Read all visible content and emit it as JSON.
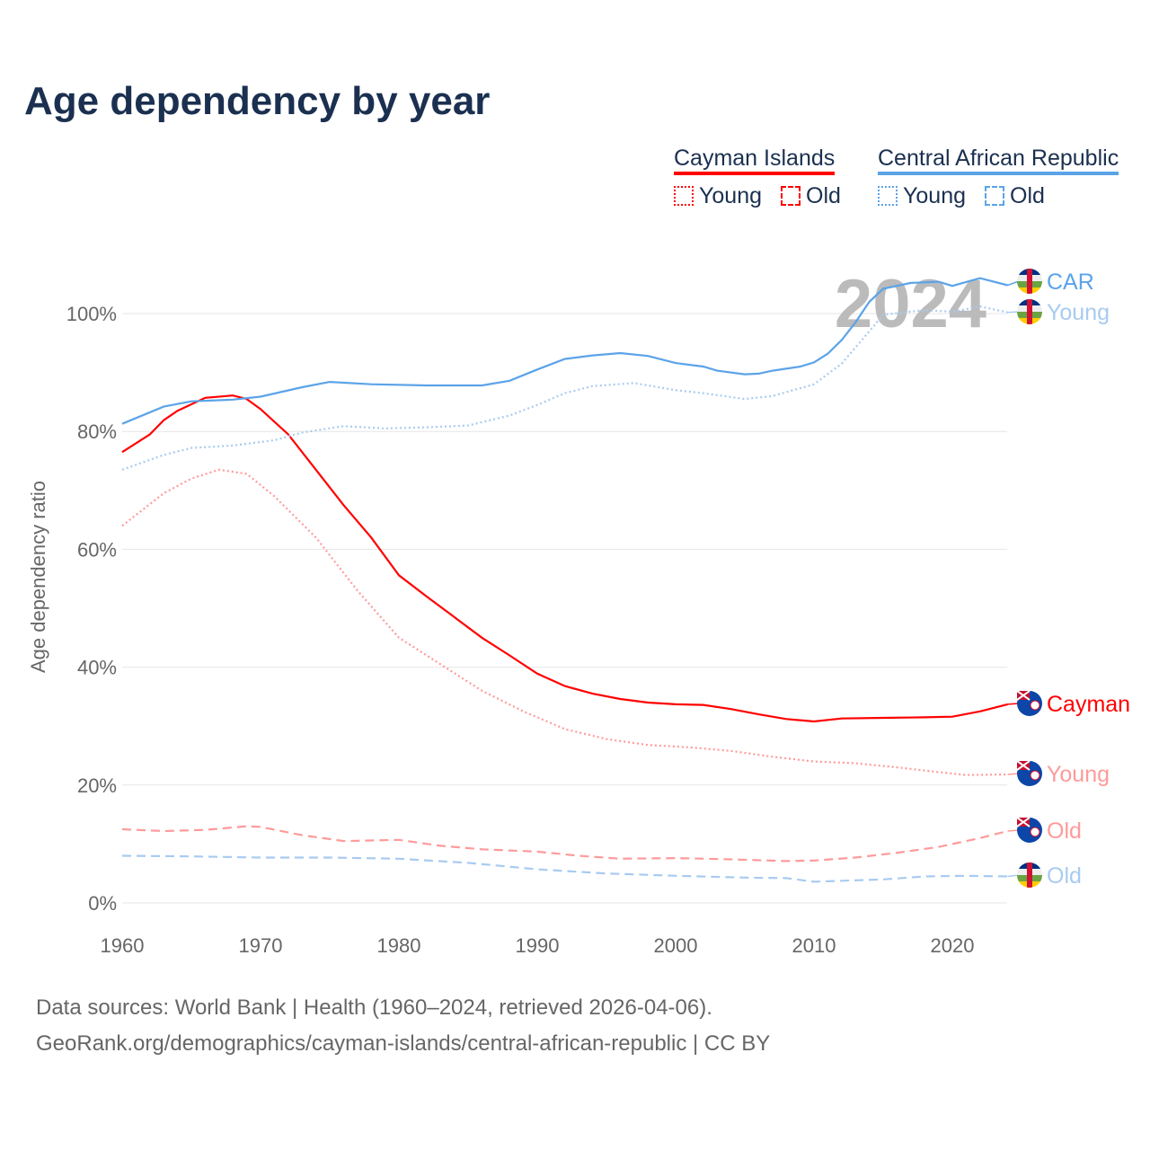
{
  "chart_data": {
    "type": "line",
    "title": "Age dependency by year",
    "xlabel": "",
    "ylabel": "Age dependency ratio",
    "xlim": [
      1960,
      2024
    ],
    "ylim": [
      0,
      110
    ],
    "x_ticks": [
      "1960",
      "1970",
      "1980",
      "1990",
      "2000",
      "2010",
      "2020"
    ],
    "y_ticks": [
      "0%",
      "20%",
      "40%",
      "60%",
      "80%",
      "100%"
    ],
    "grid": true,
    "year_watermark": "2024",
    "legend": {
      "placement": "top-right",
      "groups": [
        {
          "name": "Cayman Islands",
          "color": "#ff0000",
          "young": "Young",
          "old": "Old"
        },
        {
          "name": "Central African Republic",
          "color": "#5ba3e8",
          "young": "Young",
          "old": "Old"
        }
      ]
    },
    "series": [
      {
        "name": "Cayman total",
        "label": "Cayman",
        "color": "#ff0000",
        "style": "solid",
        "points": [
          [
            1960,
            76.5
          ],
          [
            1962,
            79.5
          ],
          [
            1963,
            81.9
          ],
          [
            1964,
            83.5
          ],
          [
            1966,
            85.7
          ],
          [
            1968,
            86.1
          ],
          [
            1969,
            85.5
          ],
          [
            1970,
            83.8
          ],
          [
            1972,
            79.5
          ],
          [
            1974,
            73.5
          ],
          [
            1976,
            67.5
          ],
          [
            1978,
            62
          ],
          [
            1980,
            55.6
          ],
          [
            1982,
            52
          ],
          [
            1984,
            48.5
          ],
          [
            1986,
            45
          ],
          [
            1988,
            42
          ],
          [
            1990,
            38.9
          ],
          [
            1992,
            36.8
          ],
          [
            1994,
            35.5
          ],
          [
            1996,
            34.6
          ],
          [
            1998,
            34
          ],
          [
            2000,
            33.7
          ],
          [
            2002,
            33.6
          ],
          [
            2004,
            32.9
          ],
          [
            2006,
            32
          ],
          [
            2008,
            31.2
          ],
          [
            2010,
            30.8
          ],
          [
            2012,
            31.3
          ],
          [
            2015,
            31.4
          ],
          [
            2018,
            31.5
          ],
          [
            2020,
            31.6
          ],
          [
            2022,
            32.5
          ],
          [
            2024,
            33.7
          ]
        ]
      },
      {
        "name": "Cayman young",
        "label": "Young",
        "color": "#ff9a9a",
        "style": "dotted",
        "points": [
          [
            1960,
            64
          ],
          [
            1963,
            69.5
          ],
          [
            1965,
            72
          ],
          [
            1967,
            73.5
          ],
          [
            1969,
            72.8
          ],
          [
            1971,
            69
          ],
          [
            1974,
            62
          ],
          [
            1977,
            53
          ],
          [
            1980,
            45
          ],
          [
            1983,
            40.5
          ],
          [
            1986,
            36
          ],
          [
            1989,
            32.5
          ],
          [
            1992,
            29.5
          ],
          [
            1995,
            27.8
          ],
          [
            1998,
            26.8
          ],
          [
            2001,
            26.4
          ],
          [
            2004,
            25.8
          ],
          [
            2007,
            24.8
          ],
          [
            2010,
            24
          ],
          [
            2013,
            23.7
          ],
          [
            2016,
            23
          ],
          [
            2019,
            22.2
          ],
          [
            2021,
            21.7
          ],
          [
            2024,
            21.8
          ]
        ]
      },
      {
        "name": "Cayman old",
        "label": "Old",
        "color": "#ff9a9a",
        "style": "dashed",
        "points": [
          [
            1960,
            12.5
          ],
          [
            1963,
            12.2
          ],
          [
            1966,
            12.4
          ],
          [
            1969,
            13
          ],
          [
            1970,
            12.9
          ],
          [
            1973,
            11.5
          ],
          [
            1976,
            10.5
          ],
          [
            1980,
            10.7
          ],
          [
            1983,
            9.7
          ],
          [
            1986,
            9.1
          ],
          [
            1990,
            8.7
          ],
          [
            1993,
            8
          ],
          [
            1996,
            7.5
          ],
          [
            2000,
            7.6
          ],
          [
            2004,
            7.4
          ],
          [
            2008,
            7.1
          ],
          [
            2010,
            7.2
          ],
          [
            2013,
            7.7
          ],
          [
            2016,
            8.5
          ],
          [
            2019,
            9.5
          ],
          [
            2022,
            11
          ],
          [
            2024,
            12.2
          ]
        ]
      },
      {
        "name": "CAR total",
        "label": "CAR",
        "color": "#5ba3e8",
        "style": "solid",
        "points": [
          [
            1960,
            81.3
          ],
          [
            1963,
            84.2
          ],
          [
            1965,
            85.1
          ],
          [
            1968,
            85.4
          ],
          [
            1970,
            85.9
          ],
          [
            1973,
            87.5
          ],
          [
            1975,
            88.4
          ],
          [
            1978,
            88
          ],
          [
            1982,
            87.8
          ],
          [
            1986,
            87.8
          ],
          [
            1988,
            88.6
          ],
          [
            1990,
            90.5
          ],
          [
            1992,
            92.3
          ],
          [
            1994,
            92.9
          ],
          [
            1996,
            93.3
          ],
          [
            1998,
            92.8
          ],
          [
            2000,
            91.6
          ],
          [
            2002,
            91
          ],
          [
            2003,
            90.3
          ],
          [
            2005,
            89.7
          ],
          [
            2006,
            89.8
          ],
          [
            2007,
            90.3
          ],
          [
            2009,
            91
          ],
          [
            2010,
            91.7
          ],
          [
            2011,
            93.2
          ],
          [
            2012,
            95.5
          ],
          [
            2013,
            98.5
          ],
          [
            2014,
            102
          ],
          [
            2015,
            104.2
          ],
          [
            2017,
            105.2
          ],
          [
            2019,
            105.4
          ],
          [
            2020,
            104.7
          ],
          [
            2022,
            106
          ],
          [
            2024,
            104.8
          ]
        ]
      },
      {
        "name": "CAR young",
        "label": "Young",
        "color": "#a8cbf0",
        "style": "dotted",
        "points": [
          [
            1960,
            73.5
          ],
          [
            1963,
            76
          ],
          [
            1965,
            77.2
          ],
          [
            1968,
            77.6
          ],
          [
            1971,
            78.5
          ],
          [
            1973,
            79.8
          ],
          [
            1976,
            80.9
          ],
          [
            1979,
            80.5
          ],
          [
            1982,
            80.7
          ],
          [
            1985,
            81
          ],
          [
            1988,
            82.7
          ],
          [
            1990,
            84.5
          ],
          [
            1992,
            86.5
          ],
          [
            1994,
            87.7
          ],
          [
            1997,
            88.2
          ],
          [
            2000,
            87
          ],
          [
            2002,
            86.5
          ],
          [
            2005,
            85.5
          ],
          [
            2007,
            86
          ],
          [
            2010,
            88
          ],
          [
            2012,
            91.5
          ],
          [
            2014,
            97
          ],
          [
            2015,
            99.8
          ],
          [
            2018,
            100.6
          ],
          [
            2020,
            100.3
          ],
          [
            2022,
            101.2
          ],
          [
            2024,
            100.2
          ]
        ]
      },
      {
        "name": "CAR old",
        "label": "Old",
        "color": "#a8cbf0",
        "style": "dashed",
        "points": [
          [
            1960,
            8
          ],
          [
            1965,
            7.9
          ],
          [
            1970,
            7.7
          ],
          [
            1975,
            7.7
          ],
          [
            1980,
            7.5
          ],
          [
            1985,
            6.8
          ],
          [
            1990,
            5.7
          ],
          [
            1995,
            5
          ],
          [
            2000,
            4.6
          ],
          [
            2005,
            4.3
          ],
          [
            2008,
            4.2
          ],
          [
            2010,
            3.6
          ],
          [
            2015,
            4
          ],
          [
            2018,
            4.5
          ],
          [
            2021,
            4.6
          ],
          [
            2024,
            4.5
          ]
        ]
      }
    ]
  },
  "footer": {
    "line1": "Data sources: World Bank | Health (1960–2024, retrieved 2026-04-06).",
    "line2": "GeoRank.org/demographics/cayman-islands/central-african-republic | CC BY"
  }
}
